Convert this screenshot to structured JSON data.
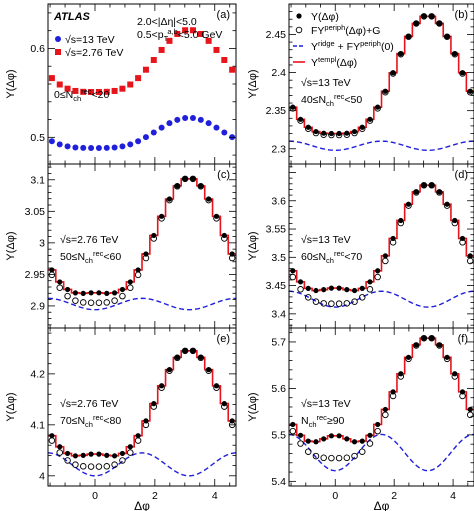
{
  "figure": {
    "xlabel": "Δφ",
    "ylabel": "Y(Δφ)",
    "legend": {
      "data": "Y(Δφ)",
      "fit": "FY^periph(Δφ)+G",
      "ridge": "Y^ridge + FY^periph(0)",
      "templ": "Y^templ(Δφ)"
    }
  },
  "chart_data": [
    {
      "type": "scatter",
      "tag": "(a)",
      "xlim": [
        -1.57,
        4.71
      ],
      "ylim": [
        0.47,
        0.65
      ],
      "yticks": [
        0.5,
        0.6
      ],
      "xticks": [
        0,
        2,
        4
      ],
      "annotations": [
        {
          "text": "ATLAS",
          "kind": "atlas"
        },
        {
          "text": "2.0<|Δη|<5.0"
        },
        {
          "text": "0.5<p_T^{a,b}<5.0 GeV"
        },
        {
          "text": "√s=13 TeV",
          "legend_marker": "blue-circle"
        },
        {
          "text": "√s=2.76 TeV",
          "legend_marker": "red-square"
        },
        {
          "text": "0≤N_ch^rec<20"
        }
      ],
      "series": [
        {
          "name": "√s=13 TeV",
          "color": "#1f1fdc",
          "marker": "circle",
          "shape": {
            "base": 0.488,
            "amp": 0.034,
            "near": 0.0,
            "nearw": 0.5
          }
        },
        {
          "name": "√s=2.76 TeV",
          "color": "#e8141c",
          "marker": "square",
          "shape": {
            "base": 0.551,
            "amp": 0.07,
            "near": 0.0,
            "nearw": 0.5
          }
        }
      ]
    },
    {
      "type": "line",
      "tag": "(b)",
      "xlim": [
        -1.57,
        4.71
      ],
      "ylim": [
        2.28,
        2.49
      ],
      "yticks": [
        2.3,
        2.35,
        2.4,
        2.45
      ],
      "xticks": [
        0,
        2,
        4
      ],
      "annotations": [
        {
          "text": "√s=13 TeV"
        },
        {
          "text": "40≤N_ch^rec<50"
        }
      ],
      "shape": {
        "base": 2.32,
        "amp": 0.155,
        "near": 0.0,
        "nearw": 0.5
      },
      "fit_shape": {
        "base": 2.318,
        "amp": 0.157,
        "near": 0.0,
        "nearw": 0.5
      },
      "ridge": {
        "base": 2.298,
        "amp": 0.012
      }
    },
    {
      "type": "line",
      "tag": "(c)",
      "xlim": [
        -1.57,
        4.71
      ],
      "ylim": [
        2.865,
        3.125
      ],
      "yticks": [
        2.9,
        2.95,
        3.0,
        3.05,
        3.1
      ],
      "xticks": [
        0,
        2,
        4
      ],
      "annotations": [
        {
          "text": "√s=2.76 TeV"
        },
        {
          "text": "50≤N_ch^rec<60"
        }
      ],
      "shape": {
        "base": 2.915,
        "amp": 0.188,
        "near": 0.006,
        "nearw": 0.5
      },
      "fit_shape": {
        "base": 2.905,
        "amp": 0.198,
        "near": 0.0,
        "nearw": 0.5
      },
      "ridge": {
        "base": 2.894,
        "amp": 0.018
      }
    },
    {
      "type": "line",
      "tag": "(d)",
      "xlim": [
        -1.57,
        4.71
      ],
      "ylim": [
        3.375,
        3.665
      ],
      "yticks": [
        3.4,
        3.45,
        3.5,
        3.55,
        3.6
      ],
      "xticks": [
        0,
        2,
        4
      ],
      "annotations": [
        {
          "text": "√s=13 TeV"
        },
        {
          "text": "60≤N_ch^rec<70"
        }
      ],
      "shape": {
        "base": 3.432,
        "amp": 0.197,
        "near": 0.014,
        "nearw": 0.5
      },
      "fit_shape": {
        "base": 3.418,
        "amp": 0.211,
        "near": 0.0,
        "nearw": 0.5
      },
      "ridge": {
        "base": 3.412,
        "amp": 0.028
      }
    },
    {
      "type": "line",
      "tag": "(e)",
      "xlim": [
        -1.57,
        4.71
      ],
      "ylim": [
        3.98,
        4.29
      ],
      "yticks": [
        4.0,
        4.1,
        4.2
      ],
      "xticks": [
        0,
        2,
        4
      ],
      "annotations": [
        {
          "text": "√s=2.76 TeV"
        },
        {
          "text": "70≤N_ch^rec<80"
        }
      ],
      "shape": {
        "base": 4.03,
        "amp": 0.217,
        "near": 0.013,
        "nearw": 0.5
      },
      "fit_shape": {
        "base": 4.018,
        "amp": 0.229,
        "near": 0.0,
        "nearw": 0.5
      },
      "ridge": {
        "base": 4.0,
        "amp": 0.045
      }
    },
    {
      "type": "line",
      "tag": "(f)",
      "xlim": [
        -1.57,
        4.71
      ],
      "ylim": [
        5.39,
        5.73
      ],
      "yticks": [
        5.4,
        5.5,
        5.6,
        5.7
      ],
      "xticks": [
        0,
        2,
        4
      ],
      "annotations": [
        {
          "text": "√s=13 TeV"
        },
        {
          "text": "N_ch^rec≥90"
        }
      ],
      "shape": {
        "base": 5.468,
        "amp": 0.242,
        "near": 0.031,
        "nearw": 0.5
      },
      "fit_shape": {
        "base": 5.45,
        "amp": 0.26,
        "near": 0.0,
        "nearw": 0.5
      },
      "ridge": {
        "base": 5.423,
        "amp": 0.078
      }
    }
  ]
}
